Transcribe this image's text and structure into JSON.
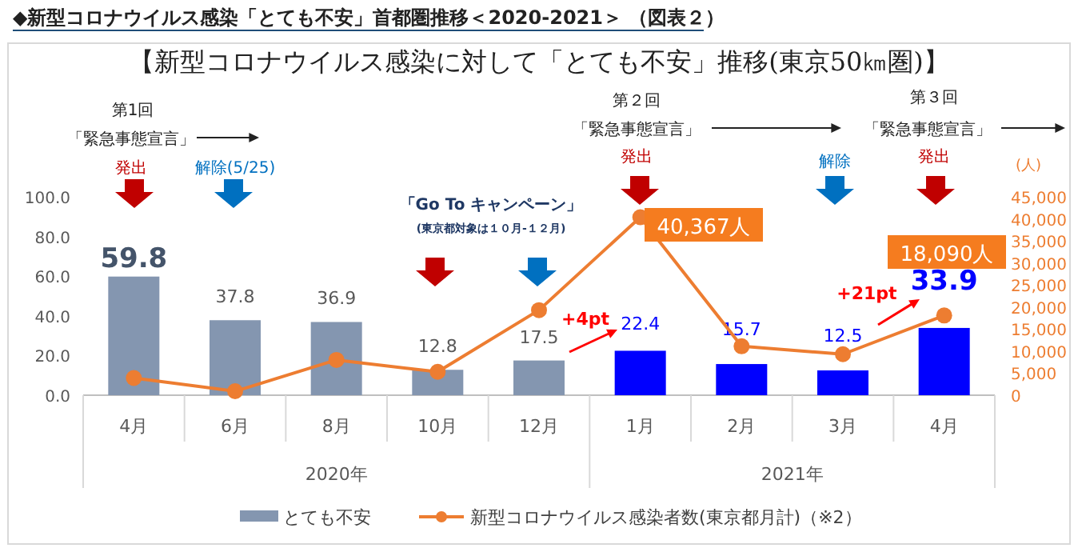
{
  "chart_data": {
    "type": "bar",
    "title": "◆新型コロナウイルス感染「とても不安」首都圏推移＜2020-2021＞ （図表２）",
    "subtitle": "【新型コロナウイルス感染に対して「とても不安」推移(東京50㎞圏)】",
    "y2label": "(人)",
    "categories": [
      "4月",
      "6月",
      "8月",
      "10月",
      "12月",
      "1月",
      "2月",
      "3月",
      "4月"
    ],
    "series": [
      {
        "name": "とても不安",
        "color": "#8496b0",
        "colors": [
          "#8496b0",
          "#8496b0",
          "#8496b0",
          "#8496b0",
          "#8496b0",
          "#0000ff",
          "#0000ff",
          "#0000ff",
          "#0000ff"
        ],
        "values": [
          59.8,
          37.8,
          36.9,
          12.8,
          17.5,
          22.4,
          15.7,
          12.5,
          33.9
        ],
        "value_labels": [
          "59.8",
          "37.8",
          "36.9",
          "12.8",
          "17.5",
          "22.4",
          "15.7",
          "12.5",
          "33.9"
        ]
      },
      {
        "name": "新型コロナウイルス感染者数(東京都月計)（※2）",
        "type": "line",
        "axis": "y2",
        "marker": "circle",
        "color": "#ed7d31",
        "values": [
          3900,
          900,
          8000,
          5300,
          19300,
          40367,
          11100,
          9300,
          18090
        ],
        "value_labels": [
          null,
          null,
          null,
          null,
          null,
          "40,367人",
          null,
          null,
          "18,090人"
        ]
      }
    ],
    "ylim": [
      0,
      100
    ],
    "yticks": [
      {
        "value": 0,
        "label": "0.0"
      },
      {
        "value": 20,
        "label": "20.0"
      },
      {
        "value": 40,
        "label": "40.0"
      },
      {
        "value": 60,
        "label": "60.0"
      },
      {
        "value": 80,
        "label": "80.0"
      },
      {
        "value": 100,
        "label": "100.0"
      }
    ],
    "y2lim": [
      0,
      45000
    ],
    "y2ticks": [
      0,
      {
        "value": 5000,
        "label": "5,000"
      },
      {
        "value": 10000,
        "label": "10,000"
      },
      {
        "value": 15000,
        "label": "15,000"
      },
      {
        "value": 20000,
        "label": "20,000"
      },
      {
        "value": 25000,
        "label": "25,000"
      },
      {
        "value": 30000,
        "label": "30,000"
      },
      {
        "value": 35000,
        "label": "35,000"
      },
      {
        "value": 40000,
        "label": "40,000"
      },
      {
        "value": 45000,
        "label": "45,000"
      }
    ],
    "legend": "bottom",
    "annotations": [
      "第1回",
      "「緊急事態宣言」",
      "発出",
      "解除(5/25)",
      "第２回",
      "「緊急事態宣言」",
      "発出",
      "解除",
      "第３回",
      "「緊急事態宣言」",
      "発出",
      "「Go To キャンペーン」",
      "(東京都対象は１０月-１２月)",
      "+4pt",
      "+21pt",
      "2020年",
      "2021年"
    ]
  }
}
